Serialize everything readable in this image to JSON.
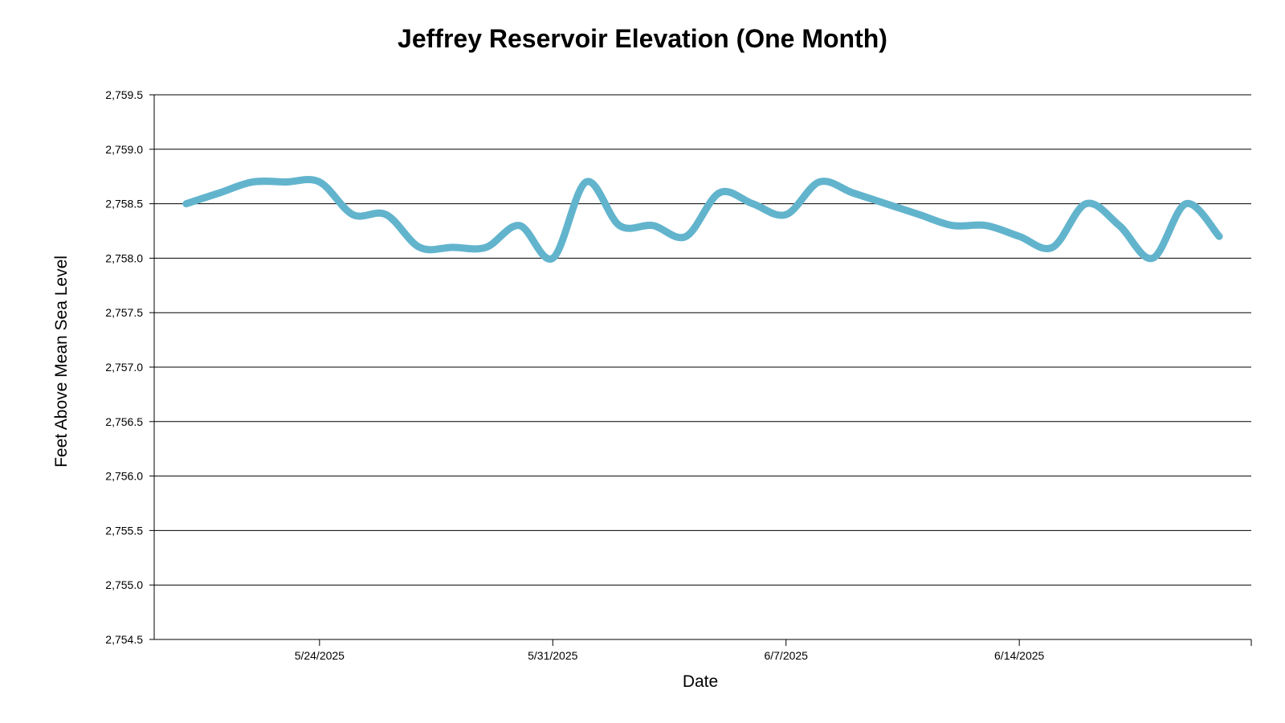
{
  "chart_data": {
    "type": "line",
    "title": "Jeffrey Reservoir Elevation (One Month)",
    "xlabel": "Date",
    "ylabel": "Feet Above Mean Sea Level",
    "ylim": [
      2754.5,
      2759.5
    ],
    "y_ticks": [
      "2,754.5",
      "2,755.0",
      "2,755.5",
      "2,756.0",
      "2,756.5",
      "2,757.0",
      "2,757.5",
      "2,758.0",
      "2,758.5",
      "2,759.0",
      "2,759.5"
    ],
    "x_ticks": [
      "5/24/2025",
      "5/31/2025",
      "6/7/2025",
      "6/14/2025"
    ],
    "grid": true,
    "line_color": "#62b4cd",
    "series": [
      {
        "x": [
          "5/20/2025",
          "5/21/2025",
          "5/22/2025",
          "5/23/2025",
          "5/24/2025",
          "5/25/2025",
          "5/26/2025",
          "5/27/2025",
          "5/28/2025",
          "5/29/2025",
          "5/30/2025",
          "5/31/2025",
          "6/1/2025",
          "6/2/2025",
          "6/3/2025",
          "6/4/2025",
          "6/5/2025",
          "6/6/2025",
          "6/7/2025",
          "6/8/2025",
          "6/9/2025",
          "6/10/2025",
          "6/11/2025",
          "6/12/2025",
          "6/13/2025",
          "6/14/2025",
          "6/15/2025",
          "6/16/2025",
          "6/17/2025",
          "6/18/2025",
          "6/19/2025",
          "6/20/2025"
        ],
        "values": [
          2758.5,
          2758.6,
          2758.7,
          2758.7,
          2758.7,
          2758.4,
          2758.4,
          2758.1,
          2758.1,
          2758.1,
          2758.3,
          2758.0,
          2758.7,
          2758.3,
          2758.3,
          2758.2,
          2758.6,
          2758.5,
          2758.4,
          2758.7,
          2758.6,
          2758.5,
          2758.4,
          2758.3,
          2758.3,
          2758.2,
          2758.1,
          2758.5,
          2758.3,
          2758.0,
          2758.5,
          2758.2
        ]
      }
    ]
  }
}
